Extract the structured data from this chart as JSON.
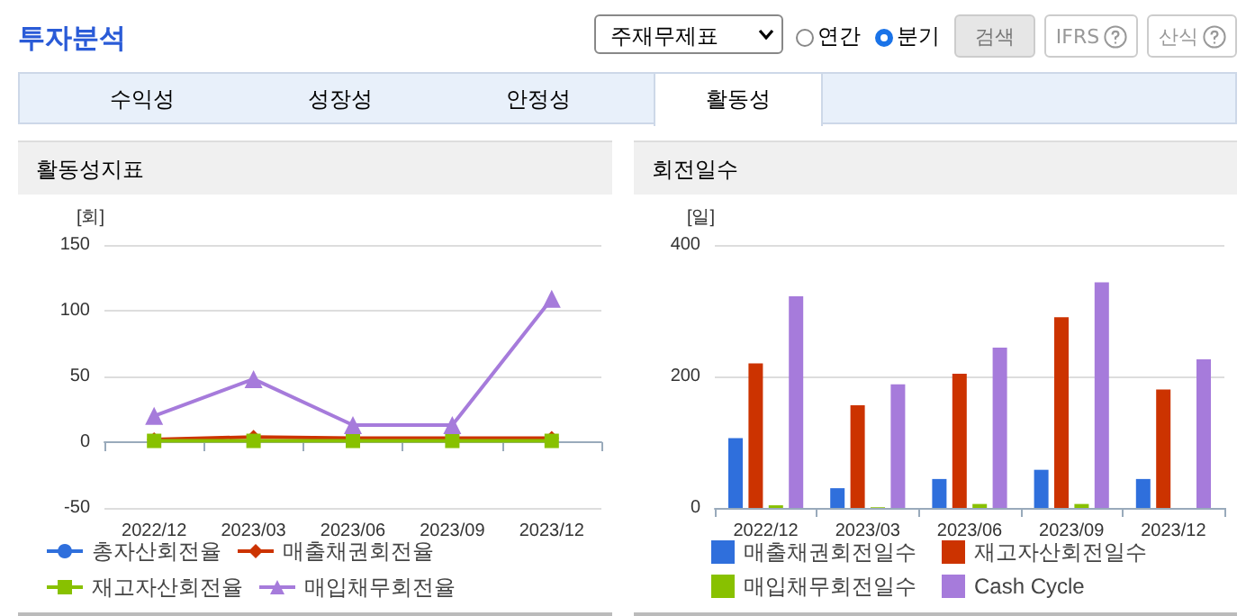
{
  "chart_data": [
    {
      "type": "other",
      "title": "투자분석",
      "annotations": [
        "주재무제표",
        "연간",
        "분기",
        "검색",
        "IFRS",
        "산식",
        "수익성",
        "성장성",
        "안정성",
        "활동성"
      ]
    },
    {
      "type": "line",
      "title": "활동성지표",
      "ylabel": "[회]",
      "categories": [
        "2022/12",
        "2023/03",
        "2023/06",
        "2023/09",
        "2023/12"
      ],
      "series": [
        {
          "name": "총자산회전율",
          "color": "#2f6fdc",
          "marker": "circle",
          "values": [
            null,
            null,
            null,
            null,
            null
          ]
        },
        {
          "name": "매출채권회전율",
          "color": "#cc3300",
          "marker": "diamond",
          "values": [
            2,
            4,
            3,
            3,
            3
          ]
        },
        {
          "name": "재고자산회전율",
          "color": "#88c100",
          "marker": "square",
          "values": [
            1,
            1,
            1,
            1,
            1
          ]
        },
        {
          "name": "매입채무회전율",
          "color": "#a67bdb",
          "marker": "triangle",
          "values": [
            20,
            48,
            13,
            13,
            109
          ]
        }
      ],
      "ylim": [
        -50,
        150
      ],
      "yticks": [
        -50,
        0,
        50,
        100,
        150
      ],
      "grid": "y",
      "legend": "bottom"
    },
    {
      "type": "bar",
      "title": "회전일수",
      "ylabel": "[일]",
      "categories": [
        "2022/12",
        "2023/03",
        "2023/06",
        "2023/09",
        "2023/12"
      ],
      "series": [
        {
          "name": "매출채권회전일수",
          "color": "#2f6fdc",
          "values": [
            106,
            30,
            44,
            58,
            44
          ]
        },
        {
          "name": "재고자산회전일수",
          "color": "#cc3300",
          "values": [
            220,
            156,
            204,
            290,
            180
          ]
        },
        {
          "name": "매입채무회전일수",
          "color": "#88c100",
          "values": [
            4,
            1,
            6,
            6,
            0
          ]
        },
        {
          "name": "Cash Cycle",
          "color": "#a67bdb",
          "values": [
            322,
            188,
            244,
            343,
            226
          ]
        }
      ],
      "ylim": [
        0,
        400
      ],
      "yticks": [
        0,
        200,
        400
      ],
      "grid": "y",
      "legend": "bottom"
    }
  ]
}
